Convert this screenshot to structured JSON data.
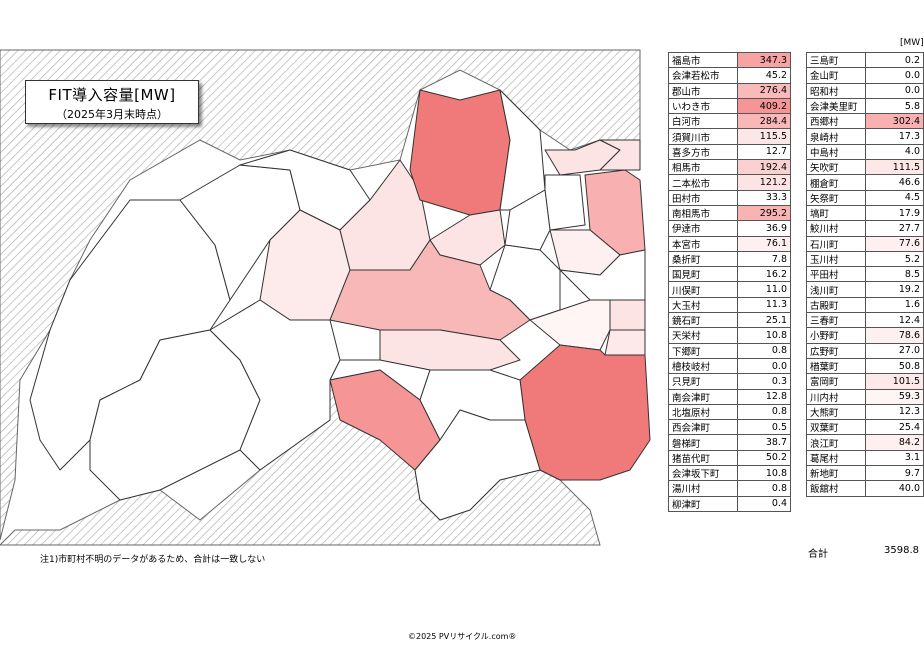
{
  "title": "FIT導入容量[MW]",
  "subtitle": "（2025年3月末時点）",
  "unit": "[MW]",
  "footnote": "注1)市町村不明のデータがあるため、合計は一致しない",
  "copyright": "©2025 PVリサイクル.com®",
  "total": {
    "label": "合計",
    "value": "3598.8"
  },
  "colors": {
    "high": "#f07a7a",
    "mid": "#f8b8b8",
    "low": "#fde4e4",
    "very_low": "#fff2f5",
    "hatch": "#aaaaaa"
  },
  "table_left": [
    {
      "name": "福島市",
      "value": "347.3",
      "color": "#f7a3a3"
    },
    {
      "name": "会津若松市",
      "value": "45.2",
      "color": "#ffffff"
    },
    {
      "name": "郡山市",
      "value": "276.4",
      "color": "#f9baba"
    },
    {
      "name": "いわき市",
      "value": "409.2",
      "color": "#f59595"
    },
    {
      "name": "白河市",
      "value": "284.4",
      "color": "#f9b8b8"
    },
    {
      "name": "須賀川市",
      "value": "115.5",
      "color": "#fde6e6"
    },
    {
      "name": "喜多方市",
      "value": "12.7",
      "color": "#ffffff"
    },
    {
      "name": "相馬市",
      "value": "192.4",
      "color": "#fbd0d0"
    },
    {
      "name": "二本松市",
      "value": "121.2",
      "color": "#fde4e4"
    },
    {
      "name": "田村市",
      "value": "33.3",
      "color": "#ffffff"
    },
    {
      "name": "南相馬市",
      "value": "295.2",
      "color": "#f8b3b3"
    },
    {
      "name": "伊達市",
      "value": "36.9",
      "color": "#ffffff"
    },
    {
      "name": "本宮市",
      "value": "76.1",
      "color": "#fef0f0"
    },
    {
      "name": "桑折町",
      "value": "7.8",
      "color": "#ffffff"
    },
    {
      "name": "国見町",
      "value": "16.2",
      "color": "#ffffff"
    },
    {
      "name": "川俣町",
      "value": "11.0",
      "color": "#ffffff"
    },
    {
      "name": "大玉村",
      "value": "11.3",
      "color": "#ffffff"
    },
    {
      "name": "鏡石町",
      "value": "25.1",
      "color": "#ffffff"
    },
    {
      "name": "天栄村",
      "value": "10.8",
      "color": "#ffffff"
    },
    {
      "name": "下郷町",
      "value": "0.8",
      "color": "#ffffff"
    },
    {
      "name": "檜枝岐村",
      "value": "0.0",
      "color": "#ffffff"
    },
    {
      "name": "只見町",
      "value": "0.3",
      "color": "#ffffff"
    },
    {
      "name": "南会津町",
      "value": "12.8",
      "color": "#ffffff"
    },
    {
      "name": "北塩原村",
      "value": "0.8",
      "color": "#ffffff"
    },
    {
      "name": "西会津町",
      "value": "0.5",
      "color": "#ffffff"
    },
    {
      "name": "磐梯町",
      "value": "38.7",
      "color": "#ffffff"
    },
    {
      "name": "猪苗代町",
      "value": "50.2",
      "color": "#ffffff"
    },
    {
      "name": "会津坂下町",
      "value": "10.8",
      "color": "#ffffff"
    },
    {
      "name": "湯川村",
      "value": "0.8",
      "color": "#ffffff"
    },
    {
      "name": "柳津町",
      "value": "0.4",
      "color": "#ffffff"
    }
  ],
  "table_right": [
    {
      "name": "三島町",
      "value": "0.2",
      "color": "#ffffff"
    },
    {
      "name": "金山町",
      "value": "0.0",
      "color": "#ffffff"
    },
    {
      "name": "昭和村",
      "value": "0.0",
      "color": "#ffffff"
    },
    {
      "name": "会津美里町",
      "value": "5.8",
      "color": "#ffffff"
    },
    {
      "name": "西郷村",
      "value": "302.4",
      "color": "#f8b0b0"
    },
    {
      "name": "泉崎村",
      "value": "17.3",
      "color": "#ffffff"
    },
    {
      "name": "中島村",
      "value": "4.0",
      "color": "#ffffff"
    },
    {
      "name": "矢吹町",
      "value": "111.5",
      "color": "#fde7e7"
    },
    {
      "name": "棚倉町",
      "value": "46.6",
      "color": "#ffffff"
    },
    {
      "name": "矢祭町",
      "value": "4.5",
      "color": "#ffffff"
    },
    {
      "name": "塙町",
      "value": "17.9",
      "color": "#ffffff"
    },
    {
      "name": "鮫川村",
      "value": "27.7",
      "color": "#ffffff"
    },
    {
      "name": "石川町",
      "value": "77.6",
      "color": "#fef0f0"
    },
    {
      "name": "玉川村",
      "value": "5.2",
      "color": "#ffffff"
    },
    {
      "name": "平田村",
      "value": "8.5",
      "color": "#ffffff"
    },
    {
      "name": "浅川町",
      "value": "19.2",
      "color": "#ffffff"
    },
    {
      "name": "古殿町",
      "value": "1.6",
      "color": "#ffffff"
    },
    {
      "name": "三春町",
      "value": "12.4",
      "color": "#ffffff"
    },
    {
      "name": "小野町",
      "value": "78.6",
      "color": "#fef0f0"
    },
    {
      "name": "広野町",
      "value": "27.0",
      "color": "#ffffff"
    },
    {
      "name": "楢葉町",
      "value": "50.8",
      "color": "#ffffff"
    },
    {
      "name": "富岡町",
      "value": "101.5",
      "color": "#fde9e9"
    },
    {
      "name": "川内村",
      "value": "59.3",
      "color": "#fff5f5"
    },
    {
      "name": "大熊町",
      "value": "12.3",
      "color": "#ffffff"
    },
    {
      "name": "双葉町",
      "value": "25.4",
      "color": "#ffffff"
    },
    {
      "name": "浪江町",
      "value": "84.2",
      "color": "#fef0f0"
    },
    {
      "name": "葛尾村",
      "value": "3.1",
      "color": "#ffffff"
    },
    {
      "name": "新地町",
      "value": "9.7",
      "color": "#ffffff"
    },
    {
      "name": "飯舘村",
      "value": "40.0",
      "color": "#ffffff"
    }
  ]
}
